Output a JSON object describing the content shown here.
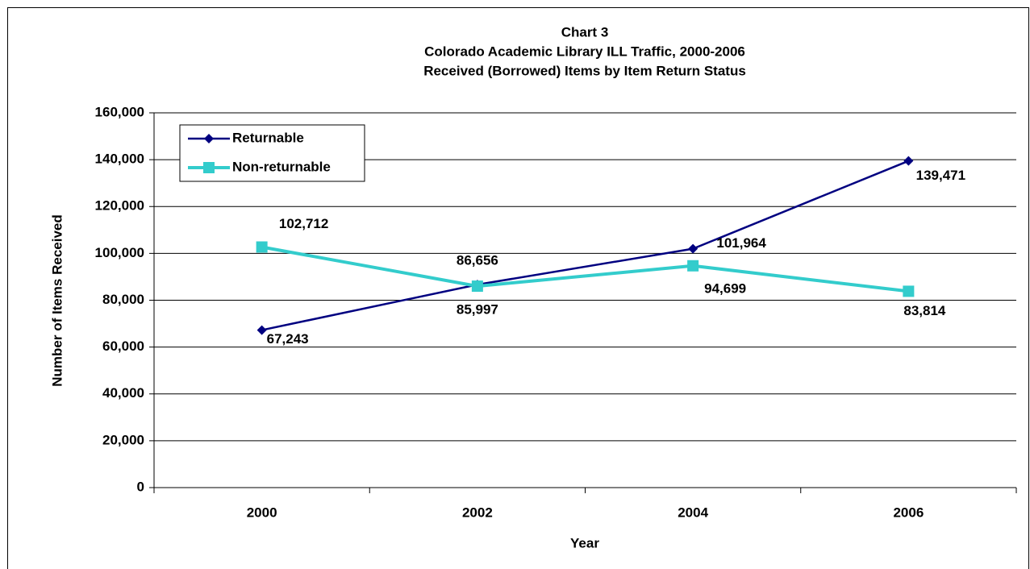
{
  "chart_data": {
    "type": "line",
    "title": "Chart 3",
    "subtitle": [
      "Colorado Academic Library ILL Traffic, 2000-2006",
      "Received (Borrowed) Items by Item Return Status"
    ],
    "x_label": "Year",
    "y_label": "Number of Items Received",
    "categories": [
      "2000",
      "2002",
      "2004",
      "2006"
    ],
    "series": [
      {
        "name": "Returnable",
        "color": "#000080",
        "marker": "diamond",
        "values": [
          67243,
          86656,
          101964,
          139471
        ],
        "value_labels": [
          "67,243",
          "86,656",
          "101,964",
          "139,471"
        ]
      },
      {
        "name": "Non-returnable",
        "color": "#33cccc",
        "marker": "square",
        "values": [
          102712,
          85997,
          94699,
          83814
        ],
        "value_labels": [
          "102,712",
          "85,997",
          "94,699",
          "83,814"
        ]
      }
    ],
    "ylim": [
      0,
      160000
    ],
    "yticks": [
      0,
      {
        "value": 20000,
        "label": "20,000"
      },
      {
        "value": 40000,
        "label": "40,000"
      },
      {
        "value": 60000,
        "label": "60,000"
      },
      {
        "value": 80000,
        "label": "80,000"
      },
      {
        "value": 100000,
        "label": "100,000"
      },
      {
        "value": 120000,
        "label": "120,000"
      },
      {
        "value": 140000,
        "label": "140,000"
      },
      {
        "value": 160000,
        "label": "160,000"
      }
    ],
    "grid": true,
    "legend": "upper left"
  }
}
